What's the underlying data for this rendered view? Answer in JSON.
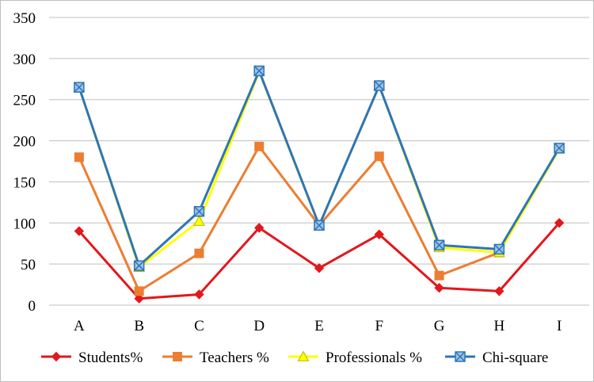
{
  "chart_data": {
    "type": "line",
    "categories": [
      "A",
      "B",
      "C",
      "D",
      "E",
      "F",
      "G",
      "H",
      "I"
    ],
    "ylim": [
      0,
      350
    ],
    "yticks": [
      0,
      50,
      100,
      150,
      200,
      250,
      300,
      350
    ],
    "grid": true,
    "legend_position": "bottom",
    "series": [
      {
        "name": "Students%",
        "color": "#e3171c",
        "marker": "diamond",
        "values": [
          90,
          8,
          13,
          94,
          45,
          86,
          21,
          17,
          100
        ]
      },
      {
        "name": "Teachers %",
        "color": "#ed7d31",
        "marker": "square",
        "values": [
          180,
          17,
          63,
          193,
          97,
          181,
          36,
          64,
          191
        ]
      },
      {
        "name": "Professionals %",
        "color": "#ffff00",
        "marker": "triangle",
        "values": [
          265,
          46,
          102,
          284,
          97,
          267,
          70,
          64,
          190
        ]
      },
      {
        "name": "Chi-square",
        "color": "#2e75b6",
        "marker": "square-x",
        "values": [
          265,
          48,
          114,
          285,
          97,
          267,
          73,
          68,
          191
        ]
      }
    ]
  }
}
